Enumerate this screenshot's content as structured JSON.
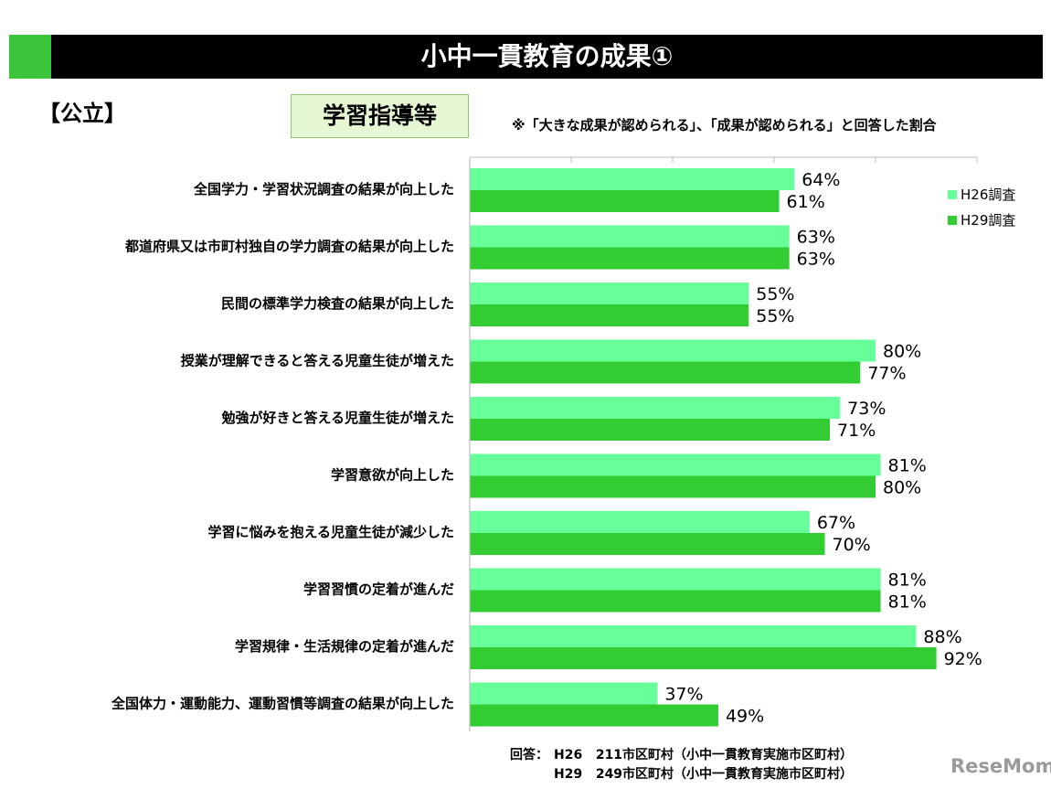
{
  "header": {
    "title": "小中一貫教育の成果①",
    "public_label": "【公立】",
    "category": "学習指導等",
    "note": "※「大きな成果が認められる」、「成果が認められる」と回答した割合"
  },
  "colors": {
    "h26": "#66ff99",
    "h29": "#33cc33",
    "accent": "#3cc43c"
  },
  "chart_data": {
    "type": "bar",
    "orientation": "horizontal",
    "unit": "%",
    "xlim": [
      0,
      100
    ],
    "grid": false,
    "legend_position": "top-right",
    "categories": [
      "全国学力・学習状況調査の結果が向上した",
      "都道府県又は市町村独自の学力調査の結果が向上した",
      "民間の標準学力検査の結果が向上した",
      "授業が理解できると答える児童生徒が増えた",
      "勉強が好きと答える児童生徒が増えた",
      "学習意欲が向上した",
      "学習に悩みを抱える児童生徒が減少した",
      "学習習慣の定着が進んだ",
      "学習規律・生活規律の定着が進んだ",
      "全国体力・運動能力、運動習慣等調査の結果が向上した"
    ],
    "series": [
      {
        "name": "H26調査",
        "values": [
          64,
          63,
          55,
          80,
          73,
          81,
          67,
          81,
          88,
          37
        ]
      },
      {
        "name": "H29調査",
        "values": [
          61,
          63,
          55,
          77,
          71,
          80,
          70,
          81,
          92,
          49
        ]
      }
    ]
  },
  "footer": {
    "label": "回答：",
    "rows": [
      {
        "year": "H26",
        "text": "211市区町村（小中一貫教育実施市区町村）"
      },
      {
        "year": "H29",
        "text": "249市区町村（小中一貫教育実施市区町村）"
      }
    ]
  },
  "watermark": "ReseMom"
}
